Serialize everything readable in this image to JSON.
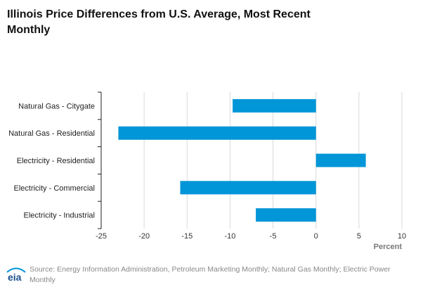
{
  "chart_data": {
    "type": "bar",
    "orientation": "horizontal",
    "title": "Illinois Price Differences from U.S. Average, Most Recent Monthly",
    "categories": [
      "Natural Gas - Citygate",
      "Natural Gas - Residential",
      "Electricity - Residential",
      "Electricity - Commercial",
      "Electricity - Industrial"
    ],
    "values": [
      -9.7,
      -23.0,
      5.8,
      -15.8,
      -7.0
    ],
    "xlabel": "Percent",
    "xlim": [
      -25,
      10
    ],
    "xticks": [
      -25,
      -20,
      -15,
      -10,
      -5,
      0,
      5,
      10
    ],
    "grid": true,
    "bar_color": "#0096d7"
  },
  "source": "Source: Energy Information Administration, Petroleum Marketing Monthly; Natural Gas Monthly; Electric Power Monthly",
  "logo": {
    "text": "eia",
    "icon": "eia-logo-icon"
  }
}
